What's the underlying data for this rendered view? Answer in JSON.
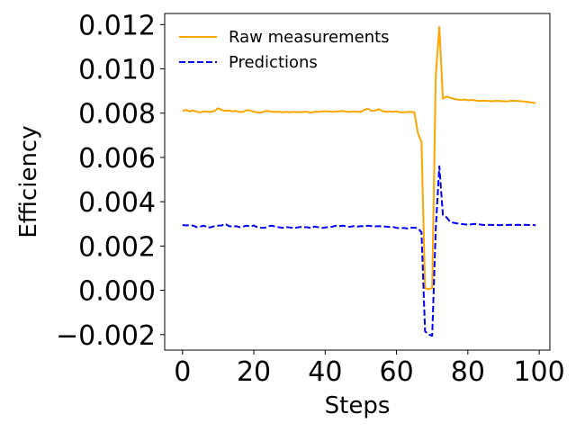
{
  "chart_data": {
    "type": "line",
    "title": "",
    "xlabel": "Steps",
    "ylabel": "Efficiency",
    "xlim": [
      -5,
      103
    ],
    "ylim": [
      -0.0027,
      0.0125
    ],
    "xticks": [
      0,
      20,
      40,
      60,
      80,
      100
    ],
    "xtick_labels": [
      "0",
      "20",
      "40",
      "60",
      "80",
      "100"
    ],
    "yticks": [
      -0.002,
      0.0,
      0.002,
      0.004,
      0.006,
      0.008,
      0.01,
      0.012
    ],
    "ytick_labels": [
      "−0.002",
      "0.000",
      "0.002",
      "0.004",
      "0.006",
      "0.008",
      "0.010",
      "0.012"
    ],
    "grid": false,
    "legend_position": "top-left",
    "x": [
      0,
      1,
      2,
      3,
      4,
      5,
      6,
      7,
      8,
      9,
      10,
      11,
      12,
      13,
      14,
      15,
      16,
      17,
      18,
      19,
      20,
      21,
      22,
      23,
      24,
      25,
      26,
      27,
      28,
      29,
      30,
      31,
      32,
      33,
      34,
      35,
      36,
      37,
      38,
      39,
      40,
      41,
      42,
      43,
      44,
      45,
      46,
      47,
      48,
      49,
      50,
      51,
      52,
      53,
      54,
      55,
      56,
      57,
      58,
      59,
      60,
      61,
      62,
      63,
      64,
      65,
      66,
      67,
      68,
      69,
      70,
      71,
      72,
      73,
      74,
      75,
      76,
      77,
      78,
      79,
      80,
      81,
      82,
      83,
      84,
      85,
      86,
      87,
      88,
      89,
      90,
      91,
      92,
      93,
      94,
      95,
      96,
      97,
      98,
      99
    ],
    "series": [
      {
        "name": "Raw measurements",
        "color": "#FFA500",
        "linestyle": "solid",
        "values": [
          0.0081,
          0.00815,
          0.00808,
          0.00812,
          0.00806,
          0.00804,
          0.00808,
          0.00806,
          0.00806,
          0.0081,
          0.00822,
          0.00815,
          0.0081,
          0.00812,
          0.00808,
          0.0081,
          0.00805,
          0.00806,
          0.00814,
          0.00812,
          0.00806,
          0.00804,
          0.00802,
          0.00808,
          0.0081,
          0.00806,
          0.00806,
          0.00806,
          0.00804,
          0.00806,
          0.00804,
          0.00806,
          0.00805,
          0.00804,
          0.00806,
          0.00806,
          0.00802,
          0.00806,
          0.00806,
          0.00808,
          0.00808,
          0.00808,
          0.00806,
          0.00808,
          0.00808,
          0.0081,
          0.00806,
          0.00806,
          0.00808,
          0.00806,
          0.00806,
          0.00815,
          0.0082,
          0.0081,
          0.00812,
          0.00818,
          0.0081,
          0.00806,
          0.00808,
          0.00806,
          0.00808,
          0.00804,
          0.00804,
          0.00805,
          0.00806,
          0.00804,
          0.0071,
          0.0067,
          0.0001,
          5e-05,
          0.0001,
          0.0097,
          0.0119,
          0.00865,
          0.00875,
          0.0087,
          0.00865,
          0.00862,
          0.0086,
          0.00862,
          0.00858,
          0.0086,
          0.00858,
          0.00855,
          0.00856,
          0.00856,
          0.00855,
          0.00854,
          0.00856,
          0.00855,
          0.00854,
          0.00853,
          0.00856,
          0.00856,
          0.00855,
          0.00854,
          0.00852,
          0.0085,
          0.00848,
          0.00845
        ]
      },
      {
        "name": "Predictions",
        "color": "#0000FF",
        "linestyle": "dashed",
        "values": [
          0.00295,
          0.00293,
          0.00294,
          0.00292,
          0.00285,
          0.00288,
          0.00292,
          0.00283,
          0.00285,
          0.0029,
          0.00292,
          0.00293,
          0.003,
          0.0029,
          0.00288,
          0.0029,
          0.00285,
          0.00288,
          0.00292,
          0.00288,
          0.00293,
          0.00284,
          0.00282,
          0.00282,
          0.00289,
          0.00292,
          0.00288,
          0.00285,
          0.00282,
          0.00286,
          0.00284,
          0.00282,
          0.00283,
          0.00286,
          0.00285,
          0.00285,
          0.00281,
          0.00288,
          0.00285,
          0.00281,
          0.00284,
          0.00286,
          0.00287,
          0.00292,
          0.0029,
          0.00292,
          0.00288,
          0.00287,
          0.0029,
          0.00288,
          0.0029,
          0.00288,
          0.00292,
          0.0029,
          0.00289,
          0.0029,
          0.00288,
          0.00288,
          0.00286,
          0.00286,
          0.00282,
          0.0028,
          0.00282,
          0.00279,
          0.00282,
          0.00283,
          0.0028,
          0.00262,
          -0.00185,
          -0.002,
          -0.00205,
          0.0028,
          0.0056,
          0.0034,
          0.0033,
          0.0031,
          0.00305,
          0.00302,
          0.003,
          0.00298,
          0.00296,
          0.00298,
          0.003,
          0.00298,
          0.00296,
          0.00294,
          0.00296,
          0.00295,
          0.00295,
          0.00294,
          0.00296,
          0.00295,
          0.00296,
          0.00295,
          0.00296,
          0.00295,
          0.00296,
          0.00295,
          0.00295,
          0.00294
        ]
      }
    ]
  }
}
